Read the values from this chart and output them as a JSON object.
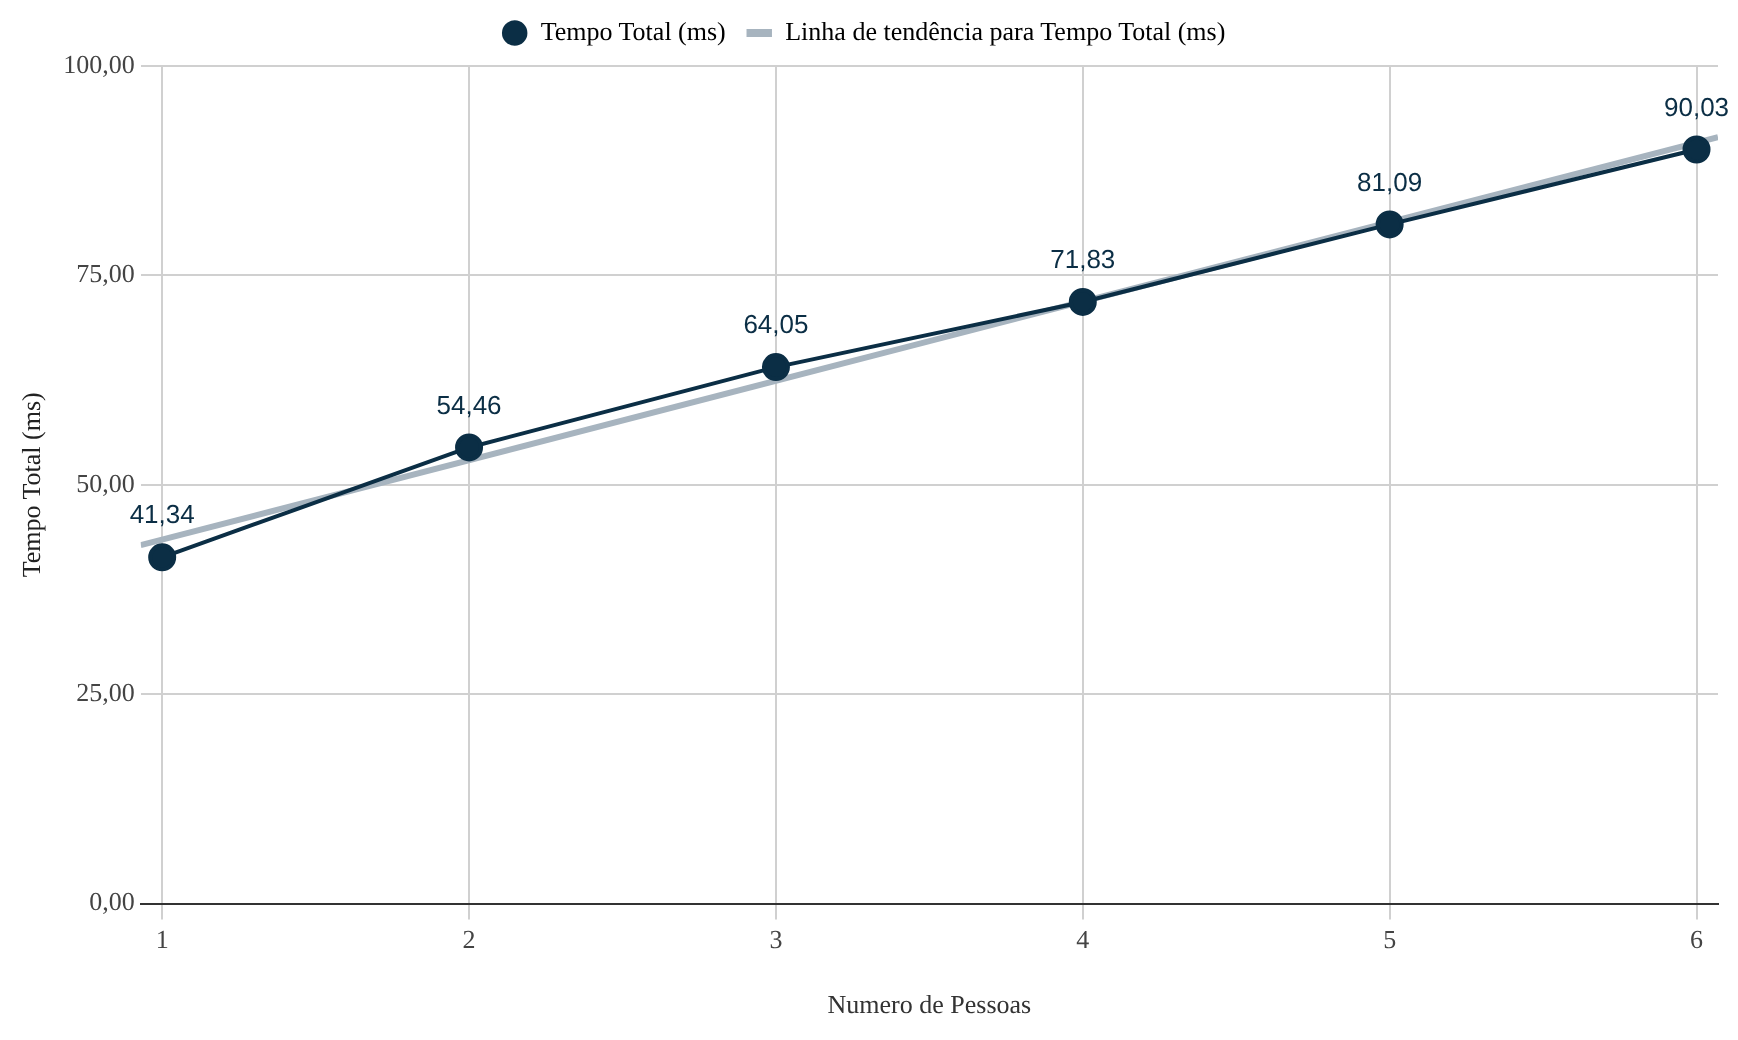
{
  "chart_data": {
    "type": "line",
    "xlabel": "Numero de Pessoas",
    "ylabel": "Tempo Total (ms)",
    "x": [
      1,
      2,
      3,
      4,
      5,
      6
    ],
    "series": [
      {
        "name": "Tempo Total (ms)",
        "color": "#0b2e45",
        "values": [
          41.34,
          54.46,
          64.05,
          71.83,
          81.09,
          90.03
        ],
        "marker": "circle",
        "value_labels": [
          "41,34",
          "54,46",
          "64,05",
          "71,83",
          "81,09",
          "90,03"
        ]
      },
      {
        "name": "Linha de tendência para Tempo Total (ms)",
        "type": "line",
        "color": "#a7b4bf",
        "x": [
          0.93,
          6.07
        ],
        "values": [
          42.8,
          91.5
        ],
        "marker": "none"
      }
    ],
    "xlim": [
      0.93,
      6.07
    ],
    "xticks": [
      1,
      2,
      3,
      4,
      5,
      6
    ],
    "ylim": [
      0,
      100
    ],
    "yticks": [
      {
        "value": 0,
        "label": "0,00"
      },
      {
        "value": 25,
        "label": "25,00"
      },
      {
        "value": 50,
        "label": "50,00"
      },
      {
        "value": 75,
        "label": "75,00"
      },
      {
        "value": 100,
        "label": "100,00"
      }
    ],
    "grid": true,
    "legend": "top"
  }
}
